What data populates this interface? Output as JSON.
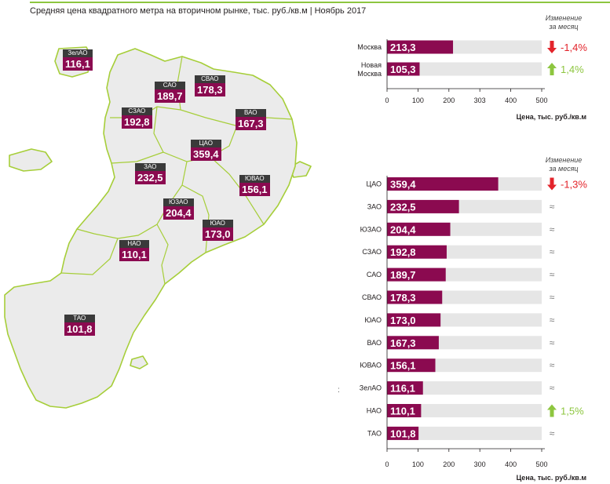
{
  "header": {
    "title": "Средняя цена квадратного метра на вторичном рынке, тыс. руб./кв.м | Ноябрь 2017"
  },
  "map": {
    "districts": [
      {
        "name": "ЗелАО",
        "value": "116,1"
      },
      {
        "name": "САО",
        "value": "189,7"
      },
      {
        "name": "СВАО",
        "value": "178,3"
      },
      {
        "name": "СЗАО",
        "value": "192,8"
      },
      {
        "name": "ВАО",
        "value": "167,3"
      },
      {
        "name": "ЦАО",
        "value": "359,4"
      },
      {
        "name": "ЗАО",
        "value": "232,5"
      },
      {
        "name": "ЮВАО",
        "value": "156,1"
      },
      {
        "name": "ЮЗАО",
        "value": "204,4"
      },
      {
        "name": "ЮАО",
        "value": "173,0"
      },
      {
        "name": "НАО",
        "value": "110,1"
      },
      {
        "name": "ТАО",
        "value": "101,8"
      }
    ]
  },
  "separator": ":",
  "colors": {
    "bar": "#8b0a50",
    "track": "#e6e6e6",
    "up": "#8dc63f",
    "down": "#e3242b",
    "accent": "#8dc63f"
  },
  "chart_data": [
    {
      "type": "bar",
      "orientation": "horizontal",
      "categories": [
        "Москва",
        "Новая Москва"
      ],
      "values": [
        213.3,
        105.3
      ],
      "value_labels": [
        "213,3",
        "105,3"
      ],
      "change_header": "Изменение за месяц",
      "changes": [
        {
          "direction": "down",
          "text": "-1,4%"
        },
        {
          "direction": "up",
          "text": "1,4%"
        }
      ],
      "xlabel": "Цена, тыс. руб./кв.м",
      "xlim": [
        0,
        500
      ],
      "xticks": [
        0,
        100,
        200,
        303,
        400,
        500
      ]
    },
    {
      "type": "bar",
      "orientation": "horizontal",
      "categories": [
        "ЦАО",
        "ЗАО",
        "ЮЗАО",
        "СЗАО",
        "САО",
        "СВАО",
        "ЮАО",
        "ВАО",
        "ЮВАО",
        "ЗелАО",
        "НАО",
        "ТАО"
      ],
      "values": [
        359.4,
        232.5,
        204.4,
        192.8,
        189.7,
        178.3,
        173.0,
        167.3,
        156.1,
        116.1,
        110.1,
        101.8
      ],
      "value_labels": [
        "359,4",
        "232,5",
        "204,4",
        "192,8",
        "189,7",
        "178,3",
        "173,0",
        "167,3",
        "156,1",
        "116,1",
        "110,1",
        "101,8"
      ],
      "change_header": "Изменение за месяц",
      "changes": [
        {
          "direction": "down",
          "text": "-1,3%"
        },
        {
          "direction": "none",
          "text": "≈"
        },
        {
          "direction": "none",
          "text": "≈"
        },
        {
          "direction": "none",
          "text": "≈"
        },
        {
          "direction": "none",
          "text": "≈"
        },
        {
          "direction": "none",
          "text": "≈"
        },
        {
          "direction": "none",
          "text": "≈"
        },
        {
          "direction": "none",
          "text": "≈"
        },
        {
          "direction": "none",
          "text": "≈"
        },
        {
          "direction": "none",
          "text": "≈"
        },
        {
          "direction": "up",
          "text": "1,5%"
        },
        {
          "direction": "none",
          "text": "≈"
        }
      ],
      "xlabel": "Цена, тыс. руб./кв.м",
      "xlim": [
        0,
        500
      ],
      "xticks": [
        0,
        100,
        200,
        300,
        400,
        500
      ]
    }
  ]
}
